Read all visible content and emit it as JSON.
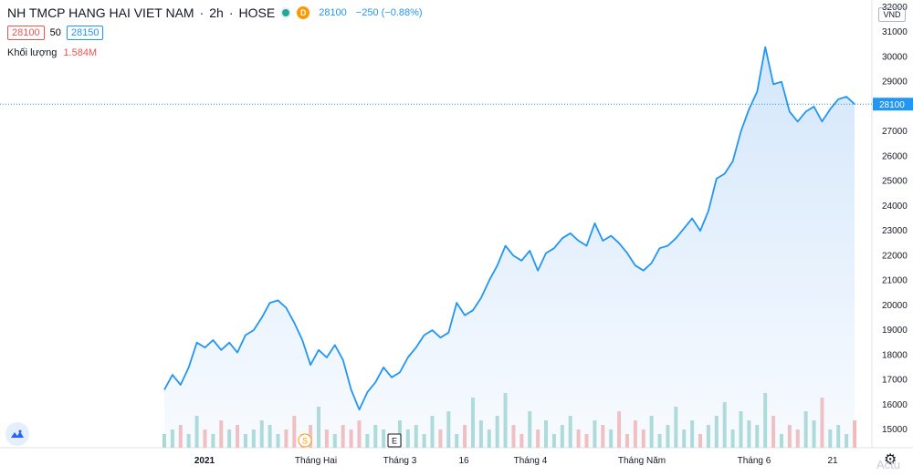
{
  "header": {
    "symbol": "NH TMCP HANG HAI VIET NAM",
    "separator1": "·",
    "interval": "2h",
    "separator2": "·",
    "exchange": "HOSE",
    "badge_d": "D",
    "last_price": "28100",
    "change": "−250 (−0.88%)"
  },
  "quote": {
    "bid": "28100",
    "spread": "50",
    "ask": "28150"
  },
  "volume": {
    "label": "Khối lượng",
    "value": "1.584M"
  },
  "currency": "VND",
  "price_label": "28100",
  "event_markers": [
    "S",
    "E"
  ],
  "watermark": "Actu",
  "colors": {
    "line": "#2196f3",
    "area": "#cfe4fb",
    "vol_up": "#a6d8d3",
    "vol_down": "#f6b8b6",
    "price_tag": "#2196f3"
  },
  "chart_data": {
    "type": "area",
    "title": "NH TMCP HANG HAI VIET NAM · 2h · HOSE",
    "ylim": [
      15000,
      32000
    ],
    "y_ticks": [
      "32000",
      "31000",
      "30000",
      "29000",
      "28000",
      "27000",
      "26000",
      "25000",
      "24000",
      "23000",
      "22000",
      "21000",
      "20000",
      "19000",
      "18000",
      "17000",
      "16000",
      "15000"
    ],
    "x_tick_labels": [
      "2021",
      "Tháng Hai",
      "Tháng 3",
      "16",
      "Tháng 4",
      "Tháng Năm",
      "Tháng 6",
      "21"
    ],
    "series": [
      {
        "name": "Close",
        "values": [
          16600,
          17200,
          16800,
          17500,
          18500,
          18300,
          18600,
          18200,
          18500,
          18100,
          18800,
          19000,
          19500,
          20100,
          20200,
          19900,
          19300,
          18600,
          17600,
          18200,
          17900,
          18400,
          17800,
          16600,
          15800,
          16500,
          16900,
          17500,
          17100,
          17300,
          17900,
          18300,
          18800,
          19000,
          18700,
          18900,
          20100,
          19600,
          19800,
          20300,
          21000,
          21600,
          22400,
          22000,
          21800,
          22200,
          21400,
          22100,
          22300,
          22700,
          22900,
          22600,
          22400,
          23300,
          22600,
          22800,
          22500,
          22100,
          21600,
          21400,
          21700,
          22300,
          22400,
          22700,
          23100,
          23500,
          23000,
          23800,
          25100,
          25300,
          25800,
          27000,
          27900,
          28600,
          30400,
          28900,
          29000,
          27800,
          27400,
          27800,
          28000,
          27400,
          27900,
          28300,
          28400,
          28100
        ]
      }
    ],
    "volume_series": [
      300,
      400,
      500,
      300,
      700,
      400,
      300,
      600,
      400,
      500,
      300,
      400,
      600,
      500,
      300,
      400,
      700,
      300,
      500,
      900,
      400,
      300,
      500,
      400,
      600,
      300,
      500,
      400,
      300,
      600,
      400,
      500,
      300,
      700,
      400,
      800,
      300,
      500,
      1100,
      600,
      400,
      700,
      1200,
      500,
      300,
      800,
      400,
      600,
      300,
      500,
      700,
      400,
      300,
      600,
      500,
      400,
      800,
      300,
      600,
      400,
      700,
      300,
      500,
      900,
      400,
      600,
      300,
      500,
      700,
      1000,
      400,
      800,
      600,
      500,
      1200,
      700,
      300,
      500,
      400,
      800,
      600,
      1100,
      400,
      500,
      300,
      600
    ]
  }
}
